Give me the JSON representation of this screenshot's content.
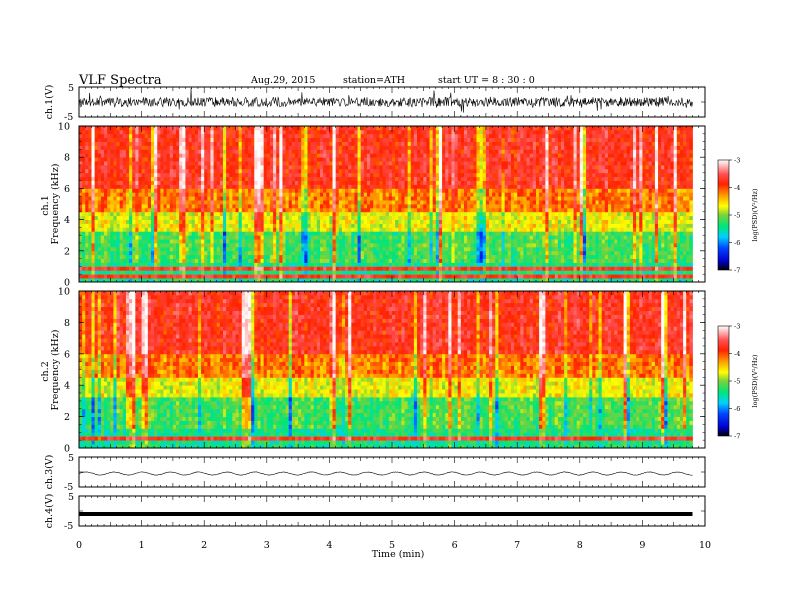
{
  "header": {
    "title": "VLF  Spectra",
    "date": "Aug.29, 2015",
    "station": "station=ATH",
    "start": "start  UT  =   8  : 30 : 0"
  },
  "chart_data": [
    {
      "type": "line",
      "panel": "ch1-waveform",
      "ylabel": "ch.1(V)",
      "y_ticks": [
        "5",
        "-5"
      ],
      "ylim": [
        -5,
        5
      ],
      "xlim": [
        0,
        10
      ],
      "data_end_min": 9.8,
      "signal": "noisy waveform, roughly -2 to 2 V with spikes to about ±4 V"
    },
    {
      "type": "heatmap",
      "panel": "ch1-spectrogram",
      "ylabel": "ch.1\nFrequency  (kHz)",
      "y_ticks": [
        "0",
        "2",
        "4",
        "6",
        "8",
        "10"
      ],
      "ylim": [
        0,
        10
      ],
      "xlim": [
        0,
        10
      ],
      "data_end_min": 9.8,
      "colorbar": {
        "label": "log(PSD)(V²/Hz)",
        "ticks": [
          "-3",
          "-4",
          "-5",
          "-6",
          "-7"
        ],
        "range": [
          -7,
          -3
        ]
      }
    },
    {
      "type": "heatmap",
      "panel": "ch2-spectrogram",
      "ylabel": "ch.2\nFrequency  (kHz)",
      "y_ticks": [
        "0",
        "2",
        "4",
        "6",
        "8",
        "10"
      ],
      "ylim": [
        0,
        10
      ],
      "xlim": [
        0,
        10
      ],
      "data_end_min": 9.8,
      "colorbar": {
        "label": "log(PSD)(V²/Hz)",
        "ticks": [
          "-3",
          "-4",
          "-5",
          "-6",
          "-7"
        ],
        "range": [
          -7,
          -3
        ]
      }
    },
    {
      "type": "line",
      "panel": "ch3-waveform",
      "ylabel": "ch.3(V)",
      "y_ticks": [
        "5",
        "-5"
      ],
      "ylim": [
        -5,
        5
      ],
      "xlim": [
        0,
        10
      ],
      "data_end_min": 9.8,
      "signal": "slow oscillation near -0.5 V, amplitude about 0.5 V, period about 0.45 min"
    },
    {
      "type": "line",
      "panel": "ch4-waveform",
      "ylabel": "ch.4(V)",
      "y_ticks": [
        "5",
        "-5"
      ],
      "ylim": [
        -5,
        5
      ],
      "xlim": [
        0,
        10
      ],
      "data_end_min": 9.8,
      "signal": "thick flat trace at about -1 V"
    }
  ],
  "x_axis": {
    "label": "Time  (min)",
    "ticks": [
      "0",
      "1",
      "2",
      "3",
      "4",
      "5",
      "6",
      "7",
      "8",
      "9",
      "10"
    ],
    "range": [
      0,
      10
    ]
  },
  "colors": {
    "spectrum_scale": [
      "#000000",
      "#0000cc",
      "#0044ff",
      "#00d0ff",
      "#00e676",
      "#7cd13b",
      "#ffff00",
      "#ff9a00",
      "#ff2200",
      "#ff5050",
      "#ffb0b0",
      "#ffffff"
    ],
    "line": "#000000"
  }
}
